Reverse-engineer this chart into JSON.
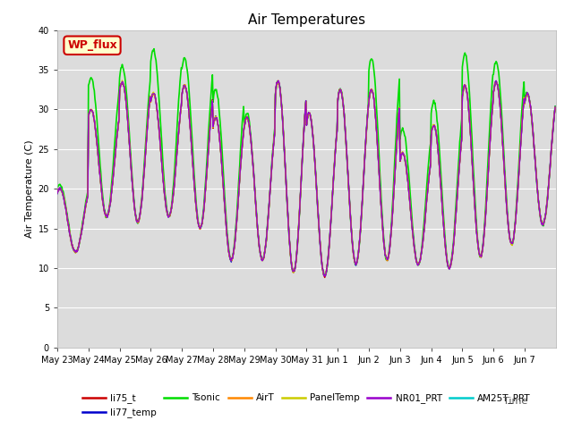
{
  "title": "Air Temperatures",
  "ylabel": "Air Temperature (C)",
  "xlabel": "Time",
  "ylim": [
    0,
    40
  ],
  "yticks": [
    0,
    5,
    10,
    15,
    20,
    25,
    30,
    35,
    40
  ],
  "bg_color": "#dcdcdc",
  "fig_color": "#ffffff",
  "annotation_text": "WP_flux",
  "annotation_facecolor": "#ffffcc",
  "annotation_edgecolor": "#cc0000",
  "annotation_textcolor": "#cc0000",
  "series": {
    "li75_t": {
      "color": "#cc0000",
      "lw": 1.0,
      "zorder": 4
    },
    "li77_temp": {
      "color": "#0000cc",
      "lw": 1.0,
      "zorder": 4
    },
    "Tsonic": {
      "color": "#00dd00",
      "lw": 1.2,
      "zorder": 2
    },
    "AirT": {
      "color": "#ff8800",
      "lw": 1.0,
      "zorder": 4
    },
    "PanelTemp": {
      "color": "#cccc00",
      "lw": 1.0,
      "zorder": 4
    },
    "NR01_PRT": {
      "color": "#9900cc",
      "lw": 1.0,
      "zorder": 4
    },
    "AM25T_PRT": {
      "color": "#00cccc",
      "lw": 1.0,
      "zorder": 3
    }
  },
  "legend_order": [
    "li75_t",
    "li77_temp",
    "Tsonic",
    "AirT",
    "PanelTemp",
    "NR01_PRT",
    "AM25T_PRT"
  ],
  "daily_min": [
    12.0,
    16.5,
    15.8,
    16.5,
    15.0,
    11.0,
    11.0,
    9.5,
    9.0,
    10.5,
    11.0,
    10.5,
    10.0,
    11.5,
    13.0,
    15.5
  ],
  "daily_max_base": [
    20.0,
    30.0,
    33.5,
    32.0,
    33.0,
    29.0,
    29.0,
    33.5,
    29.5,
    32.5,
    32.5,
    24.5,
    28.0,
    33.0,
    33.5,
    32.0
  ],
  "daily_max_tsonic": [
    20.5,
    34.0,
    35.5,
    37.5,
    36.5,
    32.5,
    29.5,
    33.5,
    29.5,
    32.5,
    36.5,
    27.5,
    31.0,
    37.0,
    36.0,
    32.0
  ],
  "xtick_labels": [
    "May 23",
    "May 24",
    "May 25",
    "May 26",
    "May 27",
    "May 28",
    "May 29",
    "May 30",
    "May 31",
    "Jun 1",
    "Jun 2",
    "Jun 3",
    "Jun 4",
    "Jun 5",
    "Jun 6",
    "Jun 7"
  ]
}
